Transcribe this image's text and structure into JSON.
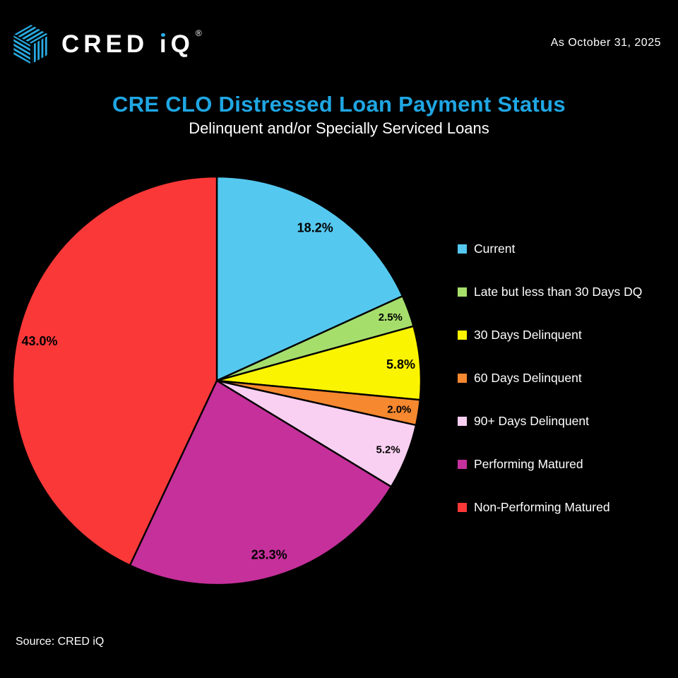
{
  "header": {
    "brand": {
      "name": "CRED iQ",
      "registered": "®",
      "logo_color": "#29ABE2"
    },
    "as_of": "As October 31, 2025"
  },
  "title": {
    "main": "CRE CLO Distressed Loan Payment Status",
    "main_color": "#1FA6E3",
    "subtitle": "Delinquent and/or Specially Serviced Loans"
  },
  "footer": {
    "source": "Source: CRED iQ"
  },
  "chart_data": {
    "type": "pie",
    "title": "CRE CLO Distressed Loan Payment Status",
    "subtitle": "Delinquent and/or Specially Serviced Loans",
    "start_angle_deg": 0,
    "direction": "clockwise",
    "legend_position": "right",
    "background_color": "#000000",
    "slice_border_color": "#000000",
    "label_color": "#000000",
    "slices": [
      {
        "label": "Current",
        "value": 18.2,
        "pct_label": "18.2%",
        "color": "#55C8EF"
      },
      {
        "label": "Late but less than 30 Days DQ",
        "value": 2.5,
        "pct_label": "2.5%",
        "color": "#A6DE6C"
      },
      {
        "label": "30 Days Delinquent",
        "value": 5.8,
        "pct_label": "5.8%",
        "color": "#FBF400"
      },
      {
        "label": "60 Days Delinquent",
        "value": 2.0,
        "pct_label": "2.0%",
        "color": "#F6882F"
      },
      {
        "label": "90+ Days Delinquent",
        "value": 5.2,
        "pct_label": "5.2%",
        "color": "#F9D0F2"
      },
      {
        "label": "Performing Matured",
        "value": 23.3,
        "pct_label": "23.3%",
        "color": "#C5309B"
      },
      {
        "label": "Non-Performing Matured",
        "value": 43.0,
        "pct_label": "43.0%",
        "color": "#FA3838"
      }
    ]
  }
}
